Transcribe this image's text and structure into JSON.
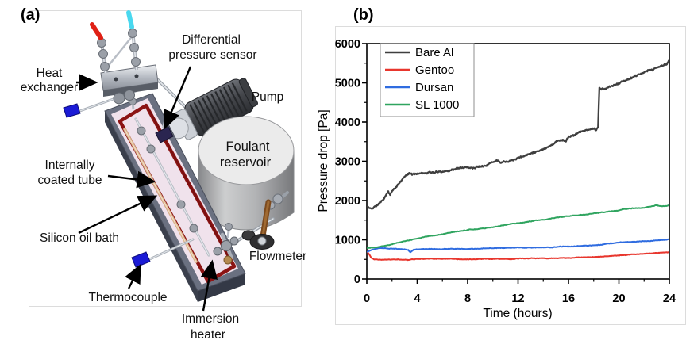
{
  "figure": {
    "panel_a": "(a)",
    "panel_b": "(b)"
  },
  "diagram": {
    "labels": {
      "heat_exchanger_1": "Heat",
      "heat_exchanger_2": "exchanger",
      "diff_pressure_1": "Differential",
      "diff_pressure_2": "pressure sensor",
      "pump": "Pump",
      "reservoir_1": "Foulant",
      "reservoir_2": "reservoir",
      "coated_tube_1": "Internally",
      "coated_tube_2": "coated tube",
      "oil_bath": "Silicon oil bath",
      "flowmeter": "Flowmeter",
      "thermocouple": "Thermocouple",
      "immersion_1": "Immersion",
      "immersion_2": "heater"
    },
    "colors": {
      "bath_wall": "#6a7080",
      "bath_interior": "#f0e2ec",
      "heater_tube": "#8c1414",
      "coated_tube": "#d9b38c",
      "metal": "#b8bcc4",
      "pump_body": "#45474c",
      "reservoir": "#c9cacc",
      "thermocouple_tip": "#1b1bd6",
      "hot_inlet": "#e02015",
      "cold_inlet": "#49d8ef",
      "sensor_body": "#2a2550"
    }
  },
  "chart_data": {
    "type": "line",
    "title": "",
    "xlabel": "Time (hours)",
    "ylabel": "Pressure drop [Pa]",
    "xlim": [
      0,
      24
    ],
    "ylim": [
      0,
      6000
    ],
    "xticks": [
      0,
      4,
      8,
      12,
      16,
      20,
      24
    ],
    "yticks": [
      0,
      1000,
      2000,
      3000,
      4000,
      5000,
      6000
    ],
    "xminor_step": 2,
    "yminor_step": 500,
    "grid": false,
    "legend_position": "top-left",
    "series": [
      {
        "name": "Bare Al",
        "color": "#3f3f3f",
        "width": 2.3,
        "noise": 36,
        "x": [
          0,
          0.25,
          0.5,
          0.8,
          1.1,
          1.4,
          1.7,
          1.85,
          2.0,
          2.2,
          2.5,
          2.8,
          3.1,
          3.4,
          3.7,
          4,
          4.5,
          5,
          5.5,
          6,
          6.5,
          7,
          7.5,
          8,
          8.5,
          9,
          9.5,
          10,
          10.3,
          10.6,
          11,
          11.5,
          12,
          12.5,
          13,
          13.5,
          14,
          14.5,
          15,
          15.4,
          15.8,
          16,
          16.5,
          17,
          17.5,
          18,
          18.2,
          18.38,
          18.42,
          18.6,
          18.9,
          19.2,
          19.6,
          20,
          20.5,
          21,
          21.5,
          22,
          22.5,
          23,
          23.5,
          23.8,
          24
        ],
        "y": [
          1850,
          1795,
          1810,
          1880,
          1960,
          2060,
          2230,
          2160,
          2240,
          2330,
          2420,
          2540,
          2640,
          2690,
          2660,
          2690,
          2700,
          2730,
          2720,
          2760,
          2780,
          2820,
          2840,
          2860,
          2850,
          2900,
          2940,
          3010,
          3060,
          3020,
          3040,
          3080,
          3130,
          3170,
          3220,
          3280,
          3340,
          3420,
          3520,
          3570,
          3540,
          3650,
          3700,
          3780,
          3800,
          3830,
          3810,
          3880,
          4890,
          4840,
          4830,
          4870,
          4930,
          4990,
          5060,
          5130,
          5180,
          5240,
          5290,
          5360,
          5420,
          5460,
          5560
        ]
      },
      {
        "name": "Gentoo",
        "color": "#e8362d",
        "width": 2,
        "noise": 11,
        "x": [
          0,
          0.15,
          0.35,
          0.6,
          1,
          1.5,
          2,
          2.5,
          3,
          3.3,
          3.6,
          4,
          5,
          6,
          7,
          8,
          9,
          10,
          11,
          12,
          13,
          14,
          15,
          16,
          17,
          18,
          19,
          20,
          21,
          22,
          23,
          24
        ],
        "y": [
          700,
          645,
          545,
          505,
          500,
          505,
          500,
          505,
          495,
          490,
          505,
          510,
          515,
          520,
          515,
          510,
          515,
          520,
          515,
          520,
          525,
          530,
          535,
          540,
          550,
          565,
          585,
          605,
          625,
          640,
          655,
          675
        ]
      },
      {
        "name": "Dursan",
        "color": "#2f6ce0",
        "width": 2,
        "noise": 11,
        "x": [
          0,
          0.3,
          0.7,
          1,
          1.5,
          2,
          2.5,
          3,
          3.3,
          3.45,
          3.7,
          4,
          5,
          6,
          7,
          8,
          9,
          10,
          11,
          12,
          13,
          14,
          15,
          16,
          17,
          18,
          19,
          20,
          21,
          22,
          23,
          24
        ],
        "y": [
          690,
          730,
          770,
          785,
          780,
          770,
          765,
          760,
          740,
          680,
          750,
          760,
          765,
          755,
          760,
          765,
          775,
          790,
          795,
          800,
          800,
          805,
          815,
          830,
          845,
          865,
          895,
          925,
          945,
          960,
          980,
          1010
        ]
      },
      {
        "name": "SL 1000",
        "color": "#2fa45f",
        "width": 2,
        "noise": 13,
        "x": [
          0,
          0.5,
          1,
          1.5,
          2,
          3,
          4,
          5,
          6,
          7,
          8,
          9,
          10,
          11,
          12,
          13,
          14,
          15,
          16,
          17,
          18,
          19,
          20,
          20.5,
          21,
          21.5,
          22,
          22.5,
          23,
          23.3,
          23.6,
          24
        ],
        "y": [
          790,
          800,
          815,
          840,
          880,
          960,
          1030,
          1090,
          1140,
          1200,
          1250,
          1290,
          1330,
          1380,
          1420,
          1470,
          1520,
          1560,
          1600,
          1640,
          1680,
          1720,
          1760,
          1790,
          1800,
          1810,
          1820,
          1850,
          1880,
          1850,
          1860,
          1885
        ]
      }
    ]
  }
}
